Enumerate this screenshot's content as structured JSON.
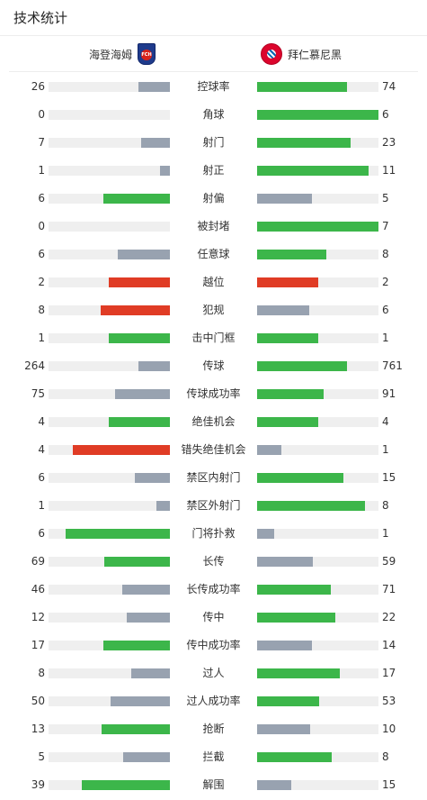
{
  "header": {
    "title": "技术统计"
  },
  "teams": {
    "home": {
      "name": "海登海姆",
      "logo_text": "FCH",
      "logo_color": "#1f3b8c"
    },
    "away": {
      "name": "拜仁慕尼黑",
      "logo_color": "#dc052d"
    }
  },
  "colors": {
    "lead": "#3cb64a",
    "trail": "#98a2b0",
    "discipline": "#e03c25",
    "track": "#efefef"
  },
  "stats": [
    {
      "label": "控球率",
      "home": "26",
      "away": "74",
      "home_color": "trail",
      "away_color": "lead"
    },
    {
      "label": "角球",
      "home": "0",
      "away": "6",
      "home_color": "trail",
      "away_color": "lead"
    },
    {
      "label": "射门",
      "home": "7",
      "away": "23",
      "home_color": "trail",
      "away_color": "lead"
    },
    {
      "label": "射正",
      "home": "1",
      "away": "11",
      "home_color": "trail",
      "away_color": "lead"
    },
    {
      "label": "射偏",
      "home": "6",
      "away": "5",
      "home_color": "lead",
      "away_color": "trail"
    },
    {
      "label": "被封堵",
      "home": "0",
      "away": "7",
      "home_color": "trail",
      "away_color": "lead"
    },
    {
      "label": "任意球",
      "home": "6",
      "away": "8",
      "home_color": "trail",
      "away_color": "lead"
    },
    {
      "label": "越位",
      "home": "2",
      "away": "2",
      "home_color": "discipline",
      "away_color": "discipline"
    },
    {
      "label": "犯规",
      "home": "8",
      "away": "6",
      "home_color": "discipline",
      "away_color": "trail"
    },
    {
      "label": "击中门框",
      "home": "1",
      "away": "1",
      "home_color": "lead",
      "away_color": "lead"
    },
    {
      "label": "传球",
      "home": "264",
      "away": "761",
      "home_color": "trail",
      "away_color": "lead"
    },
    {
      "label": "传球成功率",
      "home": "75",
      "away": "91",
      "home_color": "trail",
      "away_color": "lead"
    },
    {
      "label": "绝佳机会",
      "home": "4",
      "away": "4",
      "home_color": "lead",
      "away_color": "lead"
    },
    {
      "label": "错失绝佳机会",
      "home": "4",
      "away": "1",
      "home_color": "discipline",
      "away_color": "trail"
    },
    {
      "label": "禁区内射门",
      "home": "6",
      "away": "15",
      "home_color": "trail",
      "away_color": "lead"
    },
    {
      "label": "禁区外射门",
      "home": "1",
      "away": "8",
      "home_color": "trail",
      "away_color": "lead"
    },
    {
      "label": "门将扑救",
      "home": "6",
      "away": "1",
      "home_color": "lead",
      "away_color": "trail"
    },
    {
      "label": "长传",
      "home": "69",
      "away": "59",
      "home_color": "lead",
      "away_color": "trail"
    },
    {
      "label": "长传成功率",
      "home": "46",
      "away": "71",
      "home_color": "trail",
      "away_color": "lead"
    },
    {
      "label": "传中",
      "home": "12",
      "away": "22",
      "home_color": "trail",
      "away_color": "lead"
    },
    {
      "label": "传中成功率",
      "home": "17",
      "away": "14",
      "home_color": "lead",
      "away_color": "trail"
    },
    {
      "label": "过人",
      "home": "8",
      "away": "17",
      "home_color": "trail",
      "away_color": "lead"
    },
    {
      "label": "过人成功率",
      "home": "50",
      "away": "53",
      "home_color": "trail",
      "away_color": "lead"
    },
    {
      "label": "抢断",
      "home": "13",
      "away": "10",
      "home_color": "lead",
      "away_color": "trail"
    },
    {
      "label": "拦截",
      "home": "5",
      "away": "8",
      "home_color": "trail",
      "away_color": "lead"
    },
    {
      "label": "解围",
      "home": "39",
      "away": "15",
      "home_color": "lead",
      "away_color": "trail"
    }
  ]
}
